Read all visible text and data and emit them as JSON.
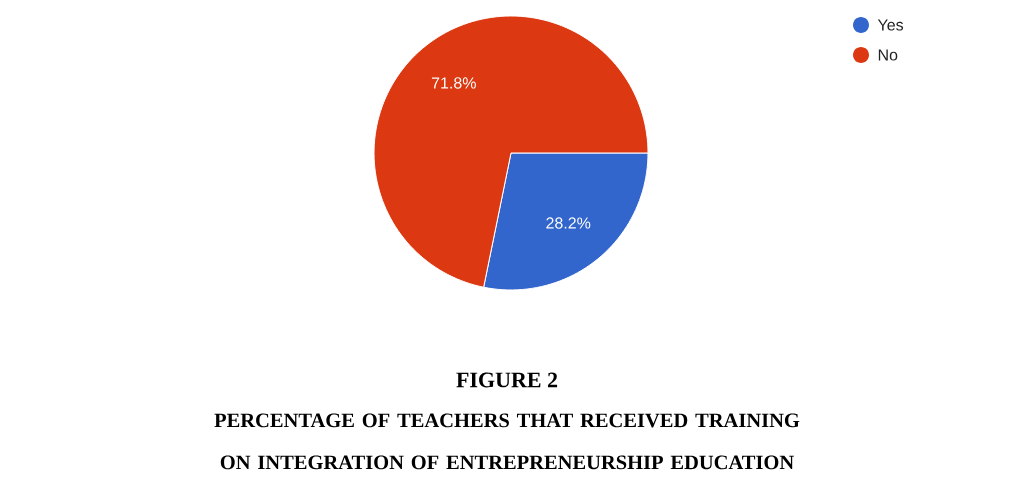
{
  "chart_data": {
    "type": "pie",
    "title": "FIGURE 2",
    "subtitle": "PERCENTAGE OF TEACHERS THAT RECEIVED TRAINING ON INTEGRATION OF ENTREPRENEURSHIP EDUCATION",
    "categories": [
      "Yes",
      "No"
    ],
    "values": [
      28.2,
      71.8
    ],
    "value_labels": [
      "28.2%",
      "71.8%"
    ],
    "colors": [
      "#3366cc",
      "#dc3912"
    ],
    "legend": "top right"
  }
}
